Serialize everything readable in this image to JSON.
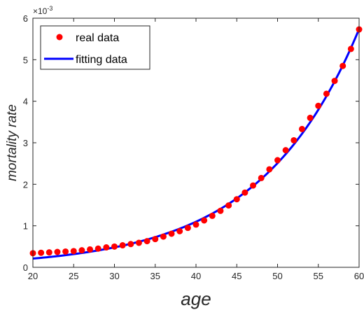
{
  "chart_data": {
    "type": "scatter",
    "xlabel": "age",
    "ylabel": "mortality rate",
    "xlim": [
      20,
      60
    ],
    "ylim": [
      0,
      0.006
    ],
    "x_ticks": [
      "20",
      "25",
      "30",
      "35",
      "40",
      "45",
      "50",
      "55",
      "60"
    ],
    "y_ticks": [
      "0",
      "1",
      "2",
      "3",
      "4",
      "5",
      "6"
    ],
    "y_exponent": "×10",
    "y_exponent_power": "-3",
    "grid": false,
    "legend_position": "top-left",
    "series": [
      {
        "name": "real data",
        "kind": "markers",
        "color": "#ff0000",
        "x": [
          20,
          21,
          22,
          23,
          24,
          25,
          26,
          27,
          28,
          29,
          30,
          31,
          32,
          33,
          34,
          35,
          36,
          37,
          38,
          39,
          40,
          41,
          42,
          43,
          44,
          45,
          46,
          47,
          48,
          49,
          50,
          51,
          52,
          53,
          54,
          55,
          56,
          57,
          58,
          59,
          60
        ],
        "y": [
          0.00034,
          0.00035,
          0.00036,
          0.00037,
          0.00038,
          0.00039,
          0.00041,
          0.00043,
          0.00045,
          0.00048,
          0.0005,
          0.00053,
          0.00056,
          0.00059,
          0.00063,
          0.00068,
          0.00074,
          0.00081,
          0.00087,
          0.00095,
          0.00103,
          0.00113,
          0.00124,
          0.00136,
          0.00149,
          0.00164,
          0.0018,
          0.00197,
          0.00215,
          0.00236,
          0.00258,
          0.00282,
          0.00306,
          0.00333,
          0.0036,
          0.00389,
          0.00418,
          0.00449,
          0.00485,
          0.00526,
          0.00573
        ]
      },
      {
        "name": "fitting data",
        "kind": "line",
        "color": "#0000ff",
        "model": "exponential",
        "a": 0.00021,
        "b": 0.0827
      }
    ]
  }
}
